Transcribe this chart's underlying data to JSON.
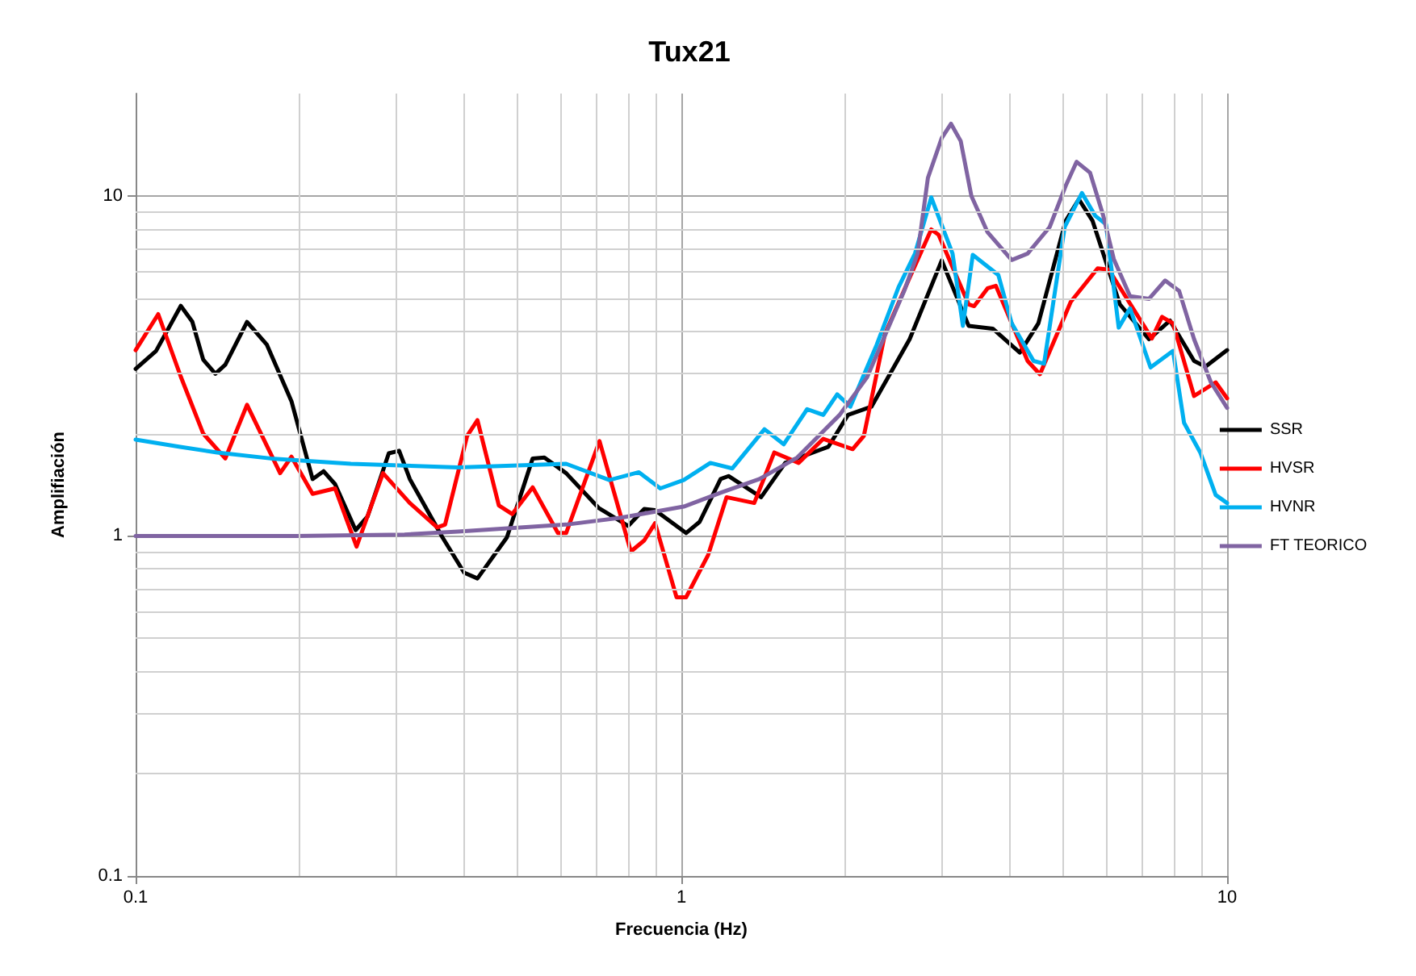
{
  "chart_data": {
    "type": "line",
    "title": "Tux21",
    "xlabel": "Frecuencia (Hz)",
    "ylabel": "Amplifiación",
    "log": "xy",
    "grid": true,
    "legend": "right",
    "marker": "none",
    "line_style": "solid",
    "xlim": [
      0.1,
      10
    ],
    "xticks": [
      0.1,
      1,
      10
    ],
    "ylim": [
      0.1,
      20
    ],
    "yticks": [
      0.1,
      1,
      10
    ],
    "series": [
      {
        "name": "SSR",
        "color": "#000000",
        "x": [
          0.1,
          0.109,
          0.121,
          0.127,
          0.133,
          0.14,
          0.146,
          0.16,
          0.174,
          0.193,
          0.211,
          0.221,
          0.232,
          0.253,
          0.266,
          0.291,
          0.304,
          0.318,
          0.365,
          0.4,
          0.423,
          0.479,
          0.534,
          0.561,
          0.615,
          0.705,
          0.799,
          0.855,
          0.895,
          1.02,
          1.08,
          1.18,
          1.22,
          1.4,
          1.55,
          1.86,
          2.02,
          2.23,
          2.62,
          3.0,
          3.36,
          3.72,
          4.17,
          4.51,
          5.06,
          5.35,
          5.67,
          6.36,
          7.19,
          7.86,
          8.7,
          9.13,
          10
        ],
        "values": [
          3.1,
          3.5,
          4.75,
          4.27,
          3.3,
          3.0,
          3.19,
          4.26,
          3.65,
          2.49,
          1.47,
          1.55,
          1.42,
          1.04,
          1.14,
          1.75,
          1.78,
          1.47,
          0.99,
          0.78,
          0.75,
          0.99,
          1.69,
          1.7,
          1.53,
          1.21,
          1.07,
          1.2,
          1.19,
          1.02,
          1.1,
          1.47,
          1.5,
          1.3,
          1.64,
          1.83,
          2.27,
          2.4,
          3.79,
          6.46,
          4.15,
          4.07,
          3.46,
          4.22,
          8.44,
          9.78,
          8.44,
          4.8,
          3.79,
          4.3,
          3.27,
          3.15,
          3.52
        ]
      },
      {
        "name": "HVSR",
        "color": "#ff0000",
        "x": [
          0.1,
          0.11,
          0.121,
          0.133,
          0.146,
          0.16,
          0.184,
          0.193,
          0.211,
          0.232,
          0.254,
          0.284,
          0.318,
          0.357,
          0.369,
          0.405,
          0.423,
          0.463,
          0.49,
          0.534,
          0.594,
          0.615,
          0.708,
          0.808,
          0.855,
          0.895,
          0.98,
          1.02,
          1.12,
          1.21,
          1.36,
          1.48,
          1.64,
          1.82,
          2.06,
          2.16,
          2.36,
          2.62,
          2.87,
          2.96,
          3.36,
          3.44,
          3.64,
          3.77,
          4.31,
          4.54,
          5.17,
          5.79,
          6.07,
          7.28,
          7.6,
          7.96,
          8.7,
          9.53,
          10
        ],
        "values": [
          3.52,
          4.49,
          2.94,
          2.0,
          1.69,
          2.43,
          1.53,
          1.71,
          1.33,
          1.38,
          0.93,
          1.53,
          1.25,
          1.06,
          1.08,
          1.97,
          2.19,
          1.23,
          1.16,
          1.39,
          1.02,
          1.02,
          1.9,
          0.9,
          0.97,
          1.09,
          0.66,
          0.66,
          0.88,
          1.3,
          1.25,
          1.76,
          1.64,
          1.93,
          1.8,
          1.97,
          3.92,
          5.75,
          7.97,
          7.69,
          4.8,
          4.74,
          5.35,
          5.44,
          3.27,
          2.99,
          4.88,
          6.12,
          6.07,
          3.81,
          4.41,
          4.22,
          2.58,
          2.83,
          2.54
        ]
      },
      {
        "name": "HVNR",
        "color": "#00b0f0",
        "x": [
          0.1,
          0.12,
          0.141,
          0.177,
          0.248,
          0.39,
          0.615,
          0.738,
          0.836,
          0.915,
          1.01,
          1.13,
          1.24,
          1.42,
          1.54,
          1.7,
          1.82,
          1.93,
          2.04,
          2.28,
          2.5,
          2.68,
          2.87,
          3.14,
          3.28,
          3.42,
          3.81,
          4.03,
          4.42,
          4.62,
          5.04,
          5.42,
          5.73,
          6.0,
          6.33,
          6.64,
          7.24,
          7.96,
          8.34,
          8.93,
          9.53,
          10
        ],
        "values": [
          1.92,
          1.83,
          1.76,
          1.69,
          1.63,
          1.59,
          1.63,
          1.46,
          1.54,
          1.38,
          1.46,
          1.64,
          1.58,
          2.06,
          1.86,
          2.36,
          2.27,
          2.61,
          2.4,
          3.65,
          5.39,
          6.77,
          9.9,
          6.77,
          4.15,
          6.71,
          5.85,
          4.22,
          3.27,
          3.21,
          8.1,
          10.2,
          8.75,
          8.25,
          4.1,
          4.67,
          3.13,
          3.5,
          2.15,
          1.76,
          1.32,
          1.25
        ]
      },
      {
        "name": "FT TEORICO",
        "color": "#8064a2",
        "x": [
          0.1,
          0.197,
          0.311,
          0.39,
          0.615,
          0.772,
          1.01,
          1.18,
          1.39,
          1.63,
          1.95,
          2.19,
          2.39,
          2.56,
          2.71,
          2.83,
          3.0,
          3.12,
          3.25,
          3.4,
          3.64,
          4.03,
          4.31,
          4.73,
          5.06,
          5.3,
          5.61,
          5.93,
          6.2,
          6.64,
          7.19,
          7.7,
          8.17,
          8.7,
          9.34,
          10
        ],
        "values": [
          1.0,
          1.0,
          1.01,
          1.03,
          1.08,
          1.13,
          1.22,
          1.34,
          1.47,
          1.7,
          2.27,
          2.93,
          4.07,
          5.25,
          6.77,
          11.3,
          14.8,
          16.3,
          14.5,
          10.0,
          7.82,
          6.48,
          6.77,
          8.1,
          10.7,
          12.6,
          11.7,
          8.75,
          6.52,
          5.07,
          4.98,
          5.64,
          5.25,
          3.79,
          2.83,
          2.38
        ]
      }
    ]
  }
}
